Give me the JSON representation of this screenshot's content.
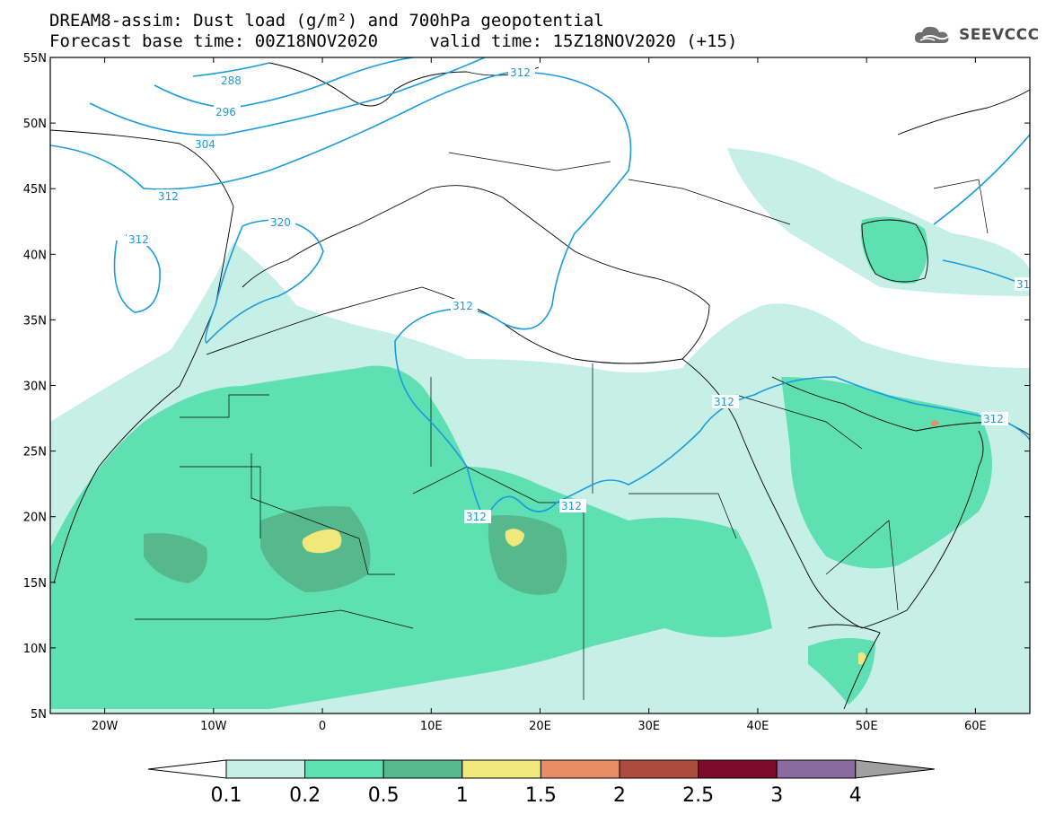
{
  "header": {
    "title_line1": "DREAM8-assim: Dust load (g/m²) and 700hPa geopotential",
    "title_line2": "Forecast base time: 00Z18NOV2020     valid time: 15Z18NOV2020 (+15)",
    "logo_text": "SEEVCCC",
    "logo_icon": "cloud-icon"
  },
  "map": {
    "lon_range": [
      -25,
      65
    ],
    "lat_range": [
      5,
      55
    ],
    "lon_ticks": [
      {
        "v": -20,
        "label": "20W"
      },
      {
        "v": -10,
        "label": "10W"
      },
      {
        "v": 0,
        "label": "0"
      },
      {
        "v": 10,
        "label": "10E"
      },
      {
        "v": 20,
        "label": "20E"
      },
      {
        "v": 30,
        "label": "30E"
      },
      {
        "v": 40,
        "label": "40E"
      },
      {
        "v": 50,
        "label": "50E"
      },
      {
        "v": 60,
        "label": "60E"
      }
    ],
    "lat_ticks": [
      {
        "v": 55,
        "label": "55N"
      },
      {
        "v": 50,
        "label": "50N"
      },
      {
        "v": 45,
        "label": "45N"
      },
      {
        "v": 40,
        "label": "40N"
      },
      {
        "v": 35,
        "label": "35N"
      },
      {
        "v": 30,
        "label": "30N"
      },
      {
        "v": 25,
        "label": "25N"
      },
      {
        "v": 20,
        "label": "20N"
      },
      {
        "v": 15,
        "label": "15N"
      },
      {
        "v": 10,
        "label": "10N"
      },
      {
        "v": 5,
        "label": "5N"
      }
    ],
    "contour_color": "#1a9be0",
    "contour_labels": [
      "288",
      "296",
      "304",
      "312",
      "320",
      "312",
      "312",
      "312",
      "312",
      "312",
      "312",
      "312",
      "312",
      "31"
    ]
  },
  "colorbar": {
    "labels": [
      "0.1",
      "0.2",
      "0.5",
      "1",
      "1.5",
      "2",
      "2.5",
      "3",
      "4"
    ],
    "colors": [
      "#ffffff",
      "#c6efe6",
      "#5fe0b2",
      "#56b98d",
      "#f0e87a",
      "#e98d66",
      "#ad4c3e",
      "#7c0a2b",
      "#8b6a9f",
      "#a0a0a0"
    ]
  }
}
